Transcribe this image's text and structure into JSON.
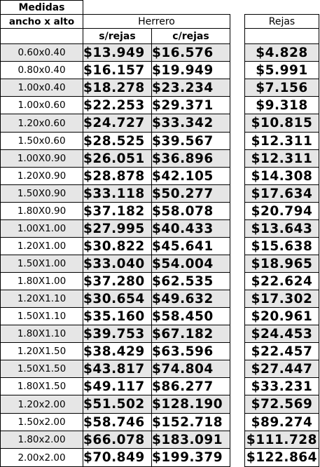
{
  "header": {
    "medidas": "Medidas",
    "ancho_alto": "ancho x alto",
    "herrero": "Herrero",
    "sin_rejas": "s/rejas",
    "con_rejas": "c/rejas",
    "rejas": "Rejas"
  },
  "rows": [
    {
      "size": "0.60x0.40",
      "sin": "$13.949",
      "con": "$16.576",
      "rejas": "$4.828"
    },
    {
      "size": "0.80x0.40",
      "sin": "$16.157",
      "con": "$19.949",
      "rejas": "$5.991"
    },
    {
      "size": "1.00x0.40",
      "sin": "$18.278",
      "con": "$23.234",
      "rejas": "$7.156"
    },
    {
      "size": "1.00x0.60",
      "sin": "$22.253",
      "con": "$29.371",
      "rejas": "$9.318"
    },
    {
      "size": "1.20x0.60",
      "sin": "$24.727",
      "con": "$33.342",
      "rejas": "$10.815"
    },
    {
      "size": "1.50x0.60",
      "sin": "$28.525",
      "con": "$39.567",
      "rejas": "$12.311"
    },
    {
      "size": "1.00X0.90",
      "sin": "$26.051",
      "con": "$36.896",
      "rejas": "$12.311"
    },
    {
      "size": "1.20X0.90",
      "sin": "$28.878",
      "con": "$42.105",
      "rejas": "$14.308"
    },
    {
      "size": "1.50X0.90",
      "sin": "$33.118",
      "con": "$50.277",
      "rejas": "$17.634"
    },
    {
      "size": "1.80X0.90",
      "sin": "$37.182",
      "con": "$58.078",
      "rejas": "$20.794"
    },
    {
      "size": "1.00X1.00",
      "sin": "$27.995",
      "con": "$40.433",
      "rejas": "$13.643"
    },
    {
      "size": "1.20X1.00",
      "sin": "$30.822",
      "con": "$45.641",
      "rejas": "$15.638"
    },
    {
      "size": "1.50X1.00",
      "sin": "$33.040",
      "con": "$54.004",
      "rejas": "$18.965"
    },
    {
      "size": "1.80X1.00",
      "sin": "$37.280",
      "con": "$62.535",
      "rejas": "$22.624"
    },
    {
      "size": "1.20X1.10",
      "sin": "$30.654",
      "con": "$49.632",
      "rejas": "$17.302"
    },
    {
      "size": "1.50X1.10",
      "sin": "$35.160",
      "con": "$58.450",
      "rejas": "$20.961"
    },
    {
      "size": "1.80X1.10",
      "sin": "$39.753",
      "con": "$67.182",
      "rejas": "$24.453"
    },
    {
      "size": "1.20X1.50",
      "sin": "$38.429",
      "con": "$63.596",
      "rejas": "$22.457"
    },
    {
      "size": "1.50X1.50",
      "sin": "$43.817",
      "con": "$74.804",
      "rejas": "$27.447"
    },
    {
      "size": "1.80X1.50",
      "sin": "$49.117",
      "con": "$86.277",
      "rejas": "$33.231"
    },
    {
      "size": "1.20x2.00",
      "sin": "$51.502",
      "con": "$128.190",
      "rejas": "$72.569"
    },
    {
      "size": "1.50x2.00",
      "sin": "$58.746",
      "con": "$152.718",
      "rejas": "$89.274"
    },
    {
      "size": "1.80x2.00",
      "sin": "$66.078",
      "con": "$183.091",
      "rejas": "$111.728"
    },
    {
      "size": "2.00x2.00",
      "sin": "$70.849",
      "con": "$199.379",
      "rejas": "$122.864"
    }
  ],
  "colors": {
    "shade": "#e6e6e6",
    "border": "#000000"
  }
}
